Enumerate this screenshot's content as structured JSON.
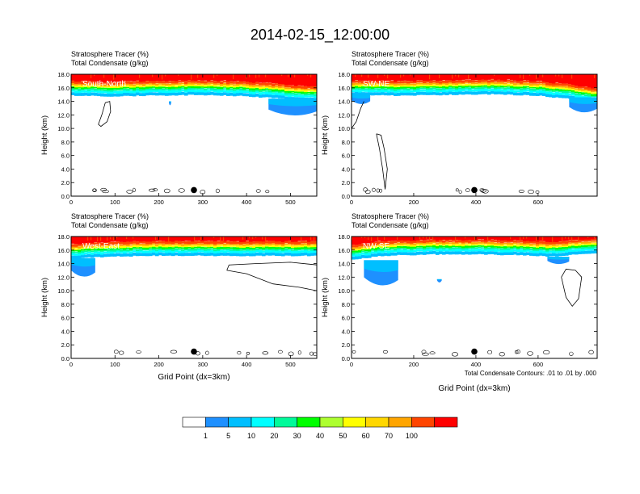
{
  "figure": {
    "title": "2014-02-15_12:00:00",
    "condensate_note": "Total Condensate Contours: .01 to .01 by .000"
  },
  "colorbar": {
    "labels": [
      "1",
      "5",
      "10",
      "20",
      "30",
      "40",
      "50",
      "60",
      "70",
      "100"
    ],
    "colors": [
      "#ffffff",
      "#1e90ff",
      "#00bfff",
      "#00ffff",
      "#00fa9a",
      "#00ff00",
      "#adff2f",
      "#ffff00",
      "#ffd700",
      "#ffa500",
      "#ff4500",
      "#ff0000"
    ]
  },
  "chart_data": [
    {
      "type": "heatmap",
      "panel_label": "South-North",
      "title_lines": [
        "Stratosphere Tracer   (%)",
        "Total Condensate   (g/kg)"
      ],
      "xlabel": "",
      "ylabel": "Height (km)",
      "xlim": [
        0,
        560
      ],
      "ylim": [
        0,
        18
      ],
      "xticks": [
        0,
        100,
        200,
        300,
        400,
        500
      ],
      "yticks": [
        "0.0",
        "2.0",
        "4.0",
        "6.0",
        "8.0",
        "10.0",
        "12.0",
        "14.0",
        "16.0",
        "18.0"
      ],
      "tropopause_km": [
        [
          0,
          15.3
        ],
        [
          100,
          15.2
        ],
        [
          200,
          15.3
        ],
        [
          300,
          15.4
        ],
        [
          400,
          15.2
        ],
        [
          470,
          14.9
        ],
        [
          520,
          14.6
        ],
        [
          560,
          14.5
        ]
      ],
      "blue_patches": [
        {
          "x": [
            450,
            560
          ],
          "y": [
            11.7,
            14.4
          ]
        },
        {
          "x": [
            223,
            228
          ],
          "y": [
            13.6,
            14.0
          ]
        }
      ],
      "condensate_contours": [
        {
          "points": [
            [
              62,
              10.6
            ],
            [
              70,
              12.0
            ],
            [
              78,
              13.8
            ],
            [
              88,
              14.0
            ],
            [
              90,
              12.5
            ],
            [
              82,
              11.0
            ],
            [
              68,
              10.3
            ],
            [
              62,
              10.6
            ]
          ]
        }
      ],
      "site_marker": {
        "x": 280,
        "y": 0.9
      }
    },
    {
      "type": "heatmap",
      "panel_label": "SW-NE",
      "title_lines": [
        "Stratosphere Tracer   (%)",
        "Total Condensate   (g/kg)"
      ],
      "xlabel": "",
      "ylabel": "Height (km)",
      "xlim": [
        0,
        790
      ],
      "ylim": [
        0,
        18
      ],
      "xticks": [
        0,
        200,
        400,
        600
      ],
      "yticks": [
        "0.0",
        "2.0",
        "4.0",
        "6.0",
        "8.0",
        "10.0",
        "12.0",
        "14.0",
        "16.0",
        "18.0"
      ],
      "tropopause_km": [
        [
          0,
          15.4
        ],
        [
          150,
          15.3
        ],
        [
          300,
          15.4
        ],
        [
          450,
          15.5
        ],
        [
          600,
          15.3
        ],
        [
          700,
          14.8
        ],
        [
          790,
          14.2
        ]
      ],
      "blue_patches": [
        {
          "x": [
            700,
            790
          ],
          "y": [
            12.2,
            14.6
          ]
        },
        {
          "x": [
            0,
            60
          ],
          "y": [
            13.6,
            15.0
          ]
        }
      ],
      "condensate_contours": [
        {
          "points": [
            [
              80,
              9.2
            ],
            [
              90,
              7.0
            ],
            [
              100,
              4.0
            ],
            [
              108,
              1.0
            ],
            [
              115,
              4.0
            ],
            [
              105,
              7.0
            ],
            [
              95,
              9.0
            ],
            [
              80,
              9.2
            ]
          ]
        },
        {
          "points": [
            [
              0,
              10.0
            ],
            [
              15,
              11.0
            ],
            [
              30,
              13.0
            ],
            [
              40,
              14.0
            ]
          ]
        }
      ],
      "site_marker": {
        "x": 395,
        "y": 0.9
      }
    },
    {
      "type": "heatmap",
      "panel_label": "West-East",
      "title_lines": [
        "Stratosphere Tracer   (%)",
        "Total Condensate   (g/kg)"
      ],
      "xlabel": "Grid Point (dx=3km)",
      "ylabel": "Height (km)",
      "xlim": [
        0,
        560
      ],
      "ylim": [
        0,
        18
      ],
      "xticks": [
        0,
        100,
        200,
        300,
        400,
        500
      ],
      "yticks": [
        "0.0",
        "2.0",
        "4.0",
        "6.0",
        "8.0",
        "10.0",
        "12.0",
        "14.0",
        "16.0",
        "18.0"
      ],
      "tropopause_km": [
        [
          0,
          15.2
        ],
        [
          100,
          15.5
        ],
        [
          200,
          15.6
        ],
        [
          300,
          15.6
        ],
        [
          400,
          15.6
        ],
        [
          500,
          15.6
        ],
        [
          560,
          15.6
        ]
      ],
      "blue_patches": [
        {
          "x": [
            0,
            55
          ],
          "y": [
            11.8,
            14.8
          ]
        }
      ],
      "condensate_contours": [
        {
          "points": [
            [
              355,
              13.0
            ],
            [
              400,
              12.5
            ],
            [
              460,
              11.0
            ],
            [
              520,
              10.5
            ],
            [
              560,
              10.0
            ],
            [
              560,
              13.8
            ],
            [
              500,
              14.2
            ],
            [
              420,
              14.0
            ],
            [
              360,
              13.8
            ],
            [
              355,
              13.0
            ]
          ]
        }
      ],
      "site_marker": {
        "x": 280,
        "y": 1.0
      }
    },
    {
      "type": "heatmap",
      "panel_label": "NW-SE",
      "title_lines": [
        "Stratosphere Tracer   (%)",
        "Total Condensate   (g/kg)"
      ],
      "xlabel": "Grid Point (dx=3km)",
      "ylabel": "Height (km)",
      "xlim": [
        0,
        790
      ],
      "ylim": [
        0,
        18
      ],
      "xticks": [
        0,
        200,
        400,
        600
      ],
      "yticks": [
        "0.0",
        "2.0",
        "4.0",
        "6.0",
        "8.0",
        "10.0",
        "12.0",
        "14.0",
        "16.0",
        "18.0"
      ],
      "tropopause_km": [
        [
          0,
          15.0
        ],
        [
          100,
          15.6
        ],
        [
          250,
          15.8
        ],
        [
          400,
          15.8
        ],
        [
          550,
          15.7
        ],
        [
          650,
          15.5
        ],
        [
          720,
          15.8
        ],
        [
          790,
          15.9
        ]
      ],
      "blue_patches": [
        {
          "x": [
            40,
            150
          ],
          "y": [
            10.3,
            14.5
          ]
        },
        {
          "x": [
            275,
            290
          ],
          "y": [
            11.4,
            11.7
          ]
        },
        {
          "x": [
            630,
            700
          ],
          "y": [
            14.0,
            15.0
          ]
        }
      ],
      "condensate_contours": [
        {
          "points": [
            [
              675,
              12.0
            ],
            [
              690,
              9.0
            ],
            [
              710,
              7.7
            ],
            [
              730,
              8.8
            ],
            [
              740,
              12.0
            ],
            [
              720,
              13.0
            ],
            [
              690,
              13.2
            ],
            [
              675,
              12.0
            ]
          ]
        }
      ],
      "site_marker": {
        "x": 395,
        "y": 1.0
      }
    }
  ]
}
